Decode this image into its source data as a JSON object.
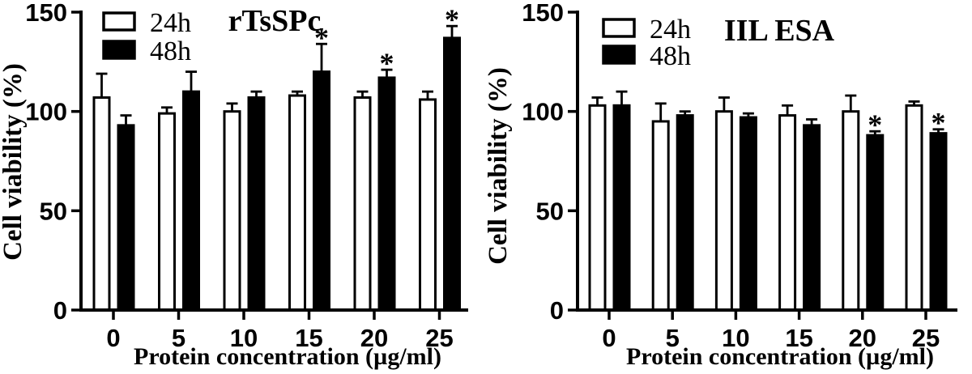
{
  "figure": {
    "background": "#ffffff",
    "ink": "#000000",
    "significance_marker": "*"
  },
  "chart_data": [
    {
      "type": "bar",
      "title": "rTsSPc",
      "xlabel": "Protein concentration (µg/ml)",
      "ylabel": "Cell viability (%)",
      "ylim": [
        0,
        150
      ],
      "yticks": [
        "0",
        "50",
        "100",
        "150"
      ],
      "categories": [
        "0",
        "5",
        "10",
        "15",
        "20",
        "25"
      ],
      "grid": false,
      "error_bars": "upper-only-capped",
      "legend": {
        "position": "top-left-inside",
        "entries": [
          {
            "label": "24h",
            "fill": "#ffffff"
          },
          {
            "label": "48h",
            "fill": "#000000"
          }
        ]
      },
      "series": [
        {
          "name": "24h",
          "fill": "#ffffff",
          "values": [
            107,
            99,
            100,
            108,
            107,
            106
          ],
          "errors": [
            12,
            3,
            4,
            2,
            3,
            4
          ],
          "significance": [
            "",
            "",
            "",
            "",
            "",
            ""
          ]
        },
        {
          "name": "48h",
          "fill": "#000000",
          "values": [
            93,
            110,
            107,
            120,
            117,
            137
          ],
          "errors": [
            5,
            10,
            3,
            14,
            4,
            6
          ],
          "significance": [
            "",
            "",
            "",
            "*",
            "*",
            "*"
          ]
        }
      ]
    },
    {
      "type": "bar",
      "title": "IIL ESA",
      "xlabel": "Protein concentration (µg/ml)",
      "ylabel": "Cell viability (%)",
      "ylim": [
        0,
        150
      ],
      "yticks": [
        "0",
        "50",
        "100",
        "150"
      ],
      "categories": [
        "0",
        "5",
        "10",
        "15",
        "20",
        "25"
      ],
      "grid": false,
      "error_bars": "upper-only-capped",
      "legend": {
        "position": "top-left-inside",
        "entries": [
          {
            "label": "24h",
            "fill": "#ffffff"
          },
          {
            "label": "48h",
            "fill": "#000000"
          }
        ]
      },
      "series": [
        {
          "name": "24h",
          "fill": "#ffffff",
          "values": [
            103,
            95,
            100,
            98,
            100,
            103
          ],
          "errors": [
            4,
            9,
            7,
            5,
            8,
            2
          ],
          "significance": [
            "",
            "",
            "",
            "",
            "",
            ""
          ]
        },
        {
          "name": "48h",
          "fill": "#000000",
          "values": [
            103,
            98,
            97,
            93,
            88,
            89
          ],
          "errors": [
            7,
            2,
            2,
            3,
            2,
            2
          ],
          "significance": [
            "",
            "",
            "",
            "",
            "*",
            "*"
          ]
        }
      ]
    }
  ]
}
